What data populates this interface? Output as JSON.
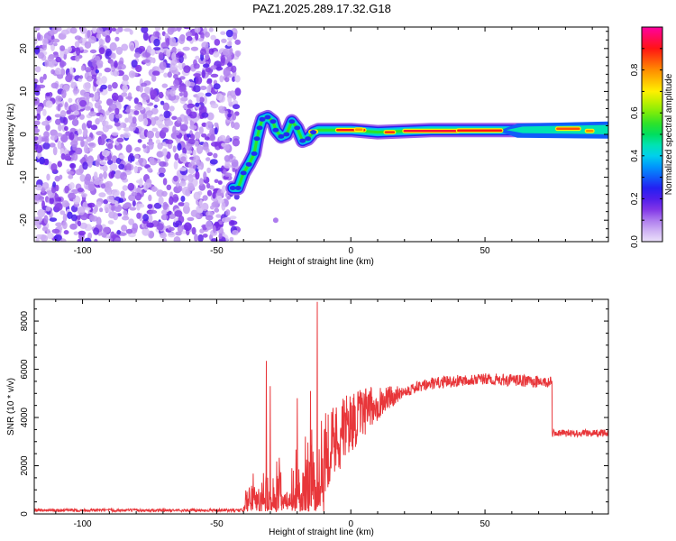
{
  "title": "PAZ1.2025.289.17.32.G18",
  "chart_data": [
    {
      "type": "heatmap",
      "name": "spectrogram",
      "xlabel": "Height of straight line (km)",
      "ylabel": "Frequency (Hz)",
      "xlim": [
        -118,
        96
      ],
      "ylim": [
        -25,
        25
      ],
      "xticks": [
        -100,
        -50,
        0,
        50
      ],
      "yticks": [
        -20,
        -10,
        0,
        10,
        20
      ],
      "noise_region": [
        -118,
        -44
      ],
      "ridge": [
        {
          "x": -44,
          "y": -12.5
        },
        {
          "x": -42,
          "y": -12.5
        },
        {
          "x": -40,
          "y": -9
        },
        {
          "x": -38,
          "y": -7
        },
        {
          "x": -36,
          "y": -4.5
        },
        {
          "x": -35,
          "y": -1
        },
        {
          "x": -34,
          "y": 1.5
        },
        {
          "x": -33,
          "y": 3.5
        },
        {
          "x": -31,
          "y": 4
        },
        {
          "x": -29,
          "y": 3
        },
        {
          "x": -28,
          "y": 1
        },
        {
          "x": -26,
          "y": -0.5
        },
        {
          "x": -24,
          "y": 0
        },
        {
          "x": -22,
          "y": 3
        },
        {
          "x": -20,
          "y": 1.5
        },
        {
          "x": -18,
          "y": -1.5
        },
        {
          "x": -16,
          "y": -1
        },
        {
          "x": -14,
          "y": 0.5
        },
        {
          "x": -12,
          "y": 1
        },
        {
          "x": -5,
          "y": 1
        },
        {
          "x": 0,
          "y": 1
        },
        {
          "x": 10,
          "y": 0.5
        },
        {
          "x": 30,
          "y": 1
        },
        {
          "x": 60,
          "y": 1
        },
        {
          "x": 80,
          "y": 1
        },
        {
          "x": 96,
          "y": 1
        }
      ],
      "colorbar": {
        "label": "Normalized spectral amplitude",
        "range": [
          0,
          1
        ],
        "ticks": [
          "0.0",
          "0.2",
          "0.4",
          "0.6",
          "0.8"
        ]
      }
    },
    {
      "type": "line",
      "name": "snr",
      "xlabel": "Height of straight line (km)",
      "ylabel": "SNR (10 * v/v)",
      "xlim": [
        -118,
        96
      ],
      "ylim": [
        0,
        8900
      ],
      "xticks": [
        -100,
        -50,
        0,
        50
      ],
      "yticks": [
        0,
        2000,
        4000,
        6000,
        8000
      ],
      "color": "#e8363a",
      "baseline": {
        "x_end": -40,
        "value": 150
      },
      "spikes": [
        {
          "x": -31.5,
          "value": 6350
        },
        {
          "x": -30,
          "value": 5300
        },
        {
          "x": -12.5,
          "value": 8800
        },
        {
          "x": -15,
          "value": 5100
        },
        {
          "x": -20,
          "value": 4800
        }
      ],
      "plateau": [
        {
          "x": -10,
          "value": 2600
        },
        {
          "x": 0,
          "value": 3800
        },
        {
          "x": 10,
          "value": 4600
        },
        {
          "x": 20,
          "value": 5100
        },
        {
          "x": 30,
          "value": 5400
        },
        {
          "x": 45,
          "value": 5600
        },
        {
          "x": 60,
          "value": 5550
        },
        {
          "x": 74,
          "value": 5450
        }
      ],
      "step_x": 75,
      "tail_value": 3350
    }
  ]
}
